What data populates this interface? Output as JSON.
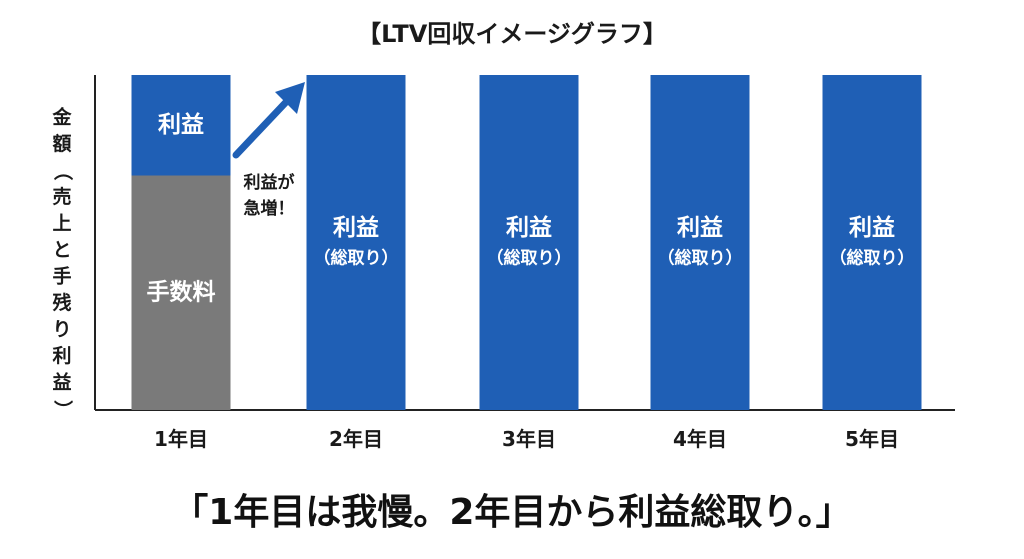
{
  "chart_data": {
    "type": "bar",
    "stacked": true,
    "title": "【LTV回収イメージグラフ】",
    "ylabel": "金額（売上と手残り利益）",
    "categories": [
      "1年目",
      "2年目",
      "3年目",
      "4年目",
      "5年目"
    ],
    "series": [
      {
        "name": "手数料",
        "values": [
          70,
          0,
          0,
          0,
          0
        ],
        "color": "#7a7a7a"
      },
      {
        "name": "利益",
        "values": [
          30,
          100,
          100,
          100,
          100
        ],
        "color": "#1f5fb5"
      }
    ],
    "ylim": [
      0,
      100
    ],
    "bar_labels": [
      {
        "category": "1年目",
        "series": "利益",
        "text": "利益",
        "sub": ""
      },
      {
        "category": "1年目",
        "series": "手数料",
        "text": "手数料",
        "sub": ""
      },
      {
        "category": "2年目",
        "series": "利益",
        "text": "利益",
        "sub": "（総取り）"
      },
      {
        "category": "3年目",
        "series": "利益",
        "text": "利益",
        "sub": "（総取り）"
      },
      {
        "category": "4年目",
        "series": "利益",
        "text": "利益",
        "sub": "（総取り）"
      },
      {
        "category": "5年目",
        "series": "利益",
        "text": "利益",
        "sub": "（総取り）"
      }
    ],
    "annotation": {
      "line1": "利益が",
      "line2": "急増！"
    },
    "grid": false
  },
  "caption": "「1年目は我慢。2年目から利益総取り。」",
  "colors": {
    "blue": "#1f5fb5",
    "gray": "#7a7a7a",
    "axis": "#222222"
  }
}
